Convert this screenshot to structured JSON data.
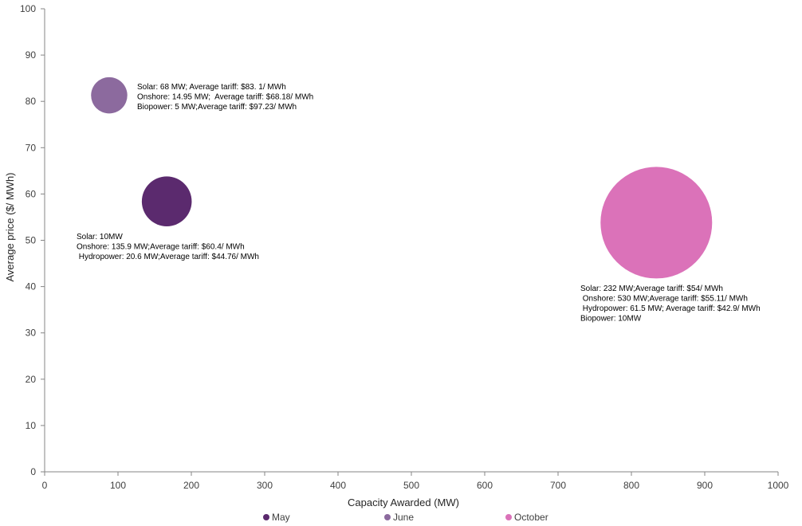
{
  "chart_data": {
    "type": "bubble",
    "title": "",
    "xlabel": "Capacity Awarded (MW)",
    "ylabel": "Average price ($/ MWh)",
    "xlim": [
      0,
      1000
    ],
    "ylim": [
      0,
      100
    ],
    "xticks": [
      0,
      100,
      200,
      300,
      400,
      500,
      600,
      700,
      800,
      900,
      1000
    ],
    "yticks": [
      0,
      10,
      20,
      30,
      40,
      50,
      60,
      70,
      80,
      90,
      100
    ],
    "grid": false,
    "legend_position": "bottom",
    "series": [
      {
        "name": "May",
        "color": "#5b2a6e",
        "x": 166.5,
        "y": 58.4,
        "bubble_size": 166.5,
        "annotation": [
          "Solar: 10MW",
          "Onshore: 135.9 MW;Average tariff: $60.4/ MWh",
          " Hydropower: 20.6 MW;Average tariff: $44.76/ MWh"
        ]
      },
      {
        "name": "June",
        "color": "#8c6a9e",
        "x": 88,
        "y": 81.3,
        "bubble_size": 88,
        "annotation": [
          "Solar: 68 MW; Average tariff: $83. 1/ MWh",
          "Onshore: 14.95 MW;  Average tariff: $68.18/ MWh",
          "Biopower: 5 MW;Average tariff: $97.23/ MWh"
        ]
      },
      {
        "name": "October",
        "color": "#db72b9",
        "x": 834,
        "y": 53.8,
        "bubble_size": 834,
        "annotation": [
          "Solar: 232 MW;Average tariff: $54/ MWh",
          " Onshore: 530 MW;Average tariff: $55.11/ MWh",
          " Hydropower: 61.5 MW; Average tariff: $42.9/ MWh",
          "Biopower: 10MW"
        ]
      }
    ]
  }
}
